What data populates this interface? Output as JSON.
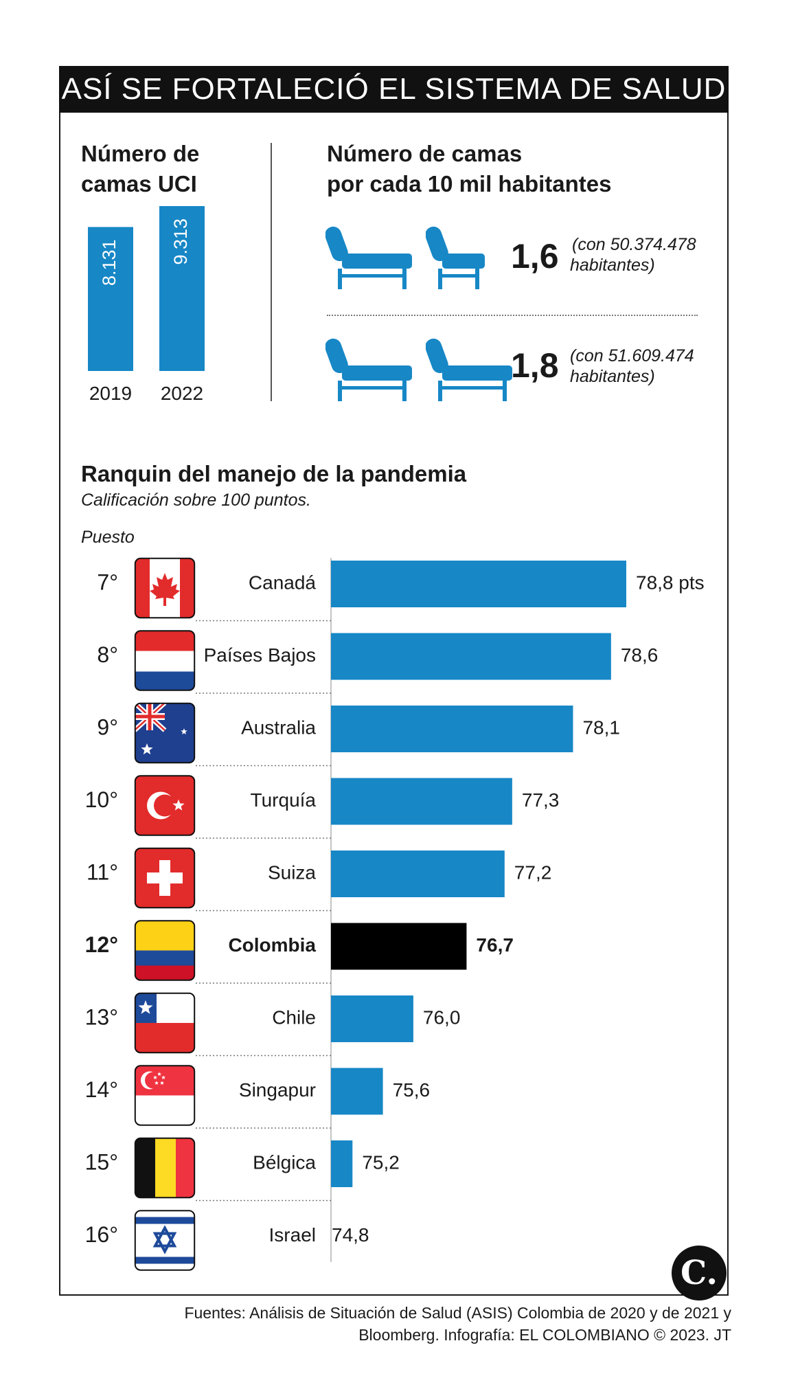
{
  "header": {
    "title": "ASÍ SE FORTALECIÓ EL SISTEMA DE SALUD"
  },
  "uci": {
    "title_line1": "Número de",
    "title_line2": "camas UCI"
  },
  "beds": {
    "title_line1": "Número de camas",
    "title_line2": "por cada 10 mil habitantes",
    "rows": [
      {
        "value": "1,6",
        "note_line1": "(con 50.374.478",
        "note_line2": "habitantes)"
      },
      {
        "value": "1,8",
        "note_line1": "(con 51.609.474",
        "note_line2": "habitantes)"
      }
    ]
  },
  "ranking": {
    "title": "Ranquin del manejo de la pandemia",
    "subtitle": "Calificación sobre 100 puntos.",
    "rank_label": "Puesto"
  },
  "chart_data": [
    {
      "type": "bar",
      "title": "Número de camas UCI",
      "categories": [
        "2019",
        "2022"
      ],
      "values": [
        8131,
        9313
      ],
      "value_labels": [
        "8.131",
        "9.313"
      ],
      "color": "#1787c6"
    },
    {
      "type": "bar",
      "orientation": "horizontal",
      "title": "Ranquin del manejo de la pandemia",
      "subtitle": "Calificación sobre 100 puntos.",
      "rank_header": "Puesto",
      "categories": [
        "Canadá",
        "Países Bajos",
        "Australia",
        "Turquía",
        "Suiza",
        "Colombia",
        "Chile",
        "Singapur",
        "Bélgica",
        "Israel"
      ],
      "ranks": [
        "7°",
        "8°",
        "9°",
        "10°",
        "11°",
        "12°",
        "13°",
        "14°",
        "15°",
        "16°"
      ],
      "values": [
        78.8,
        78.6,
        78.1,
        77.3,
        77.2,
        76.7,
        76.0,
        75.6,
        75.2,
        74.8
      ],
      "value_labels": [
        "78,8 pts",
        "78,6",
        "78,1",
        "77,3",
        "77,2",
        "76,7",
        "76,0",
        "75,6",
        "75,2",
        "74,8"
      ],
      "flags": [
        "canada-flag",
        "netherlands-flag",
        "australia-flag",
        "turkey-flag",
        "switzerland-flag",
        "colombia-flag",
        "chile-flag",
        "singapore-flag",
        "belgium-flag",
        "israel-flag"
      ],
      "highlight": "Colombia",
      "color": "#1787c6",
      "highlight_color": "#000000"
    }
  ],
  "footer": {
    "line1": "Fuentes: Análisis de Situación de Salud (ASIS) Colombia de 2020 y de 2021 y",
    "line2": "Bloomberg. Infografía: EL COLOMBIANO © 2023. JT"
  },
  "logo": {
    "mark": "C."
  }
}
